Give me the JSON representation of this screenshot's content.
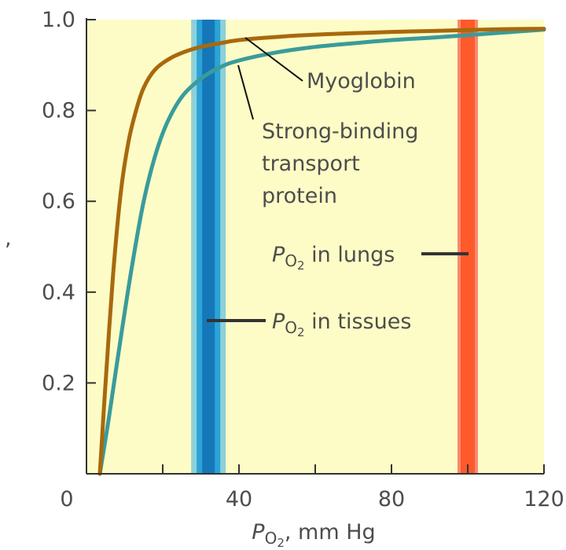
{
  "chart_data": {
    "type": "line",
    "title": "",
    "xlabel": {
      "symbol": "P",
      "subscript": "O",
      "subsubscript": "2",
      "unit": ", mm Hg"
    },
    "ylabel": ",",
    "xlim": [
      0,
      120
    ],
    "ylim": [
      0,
      1.0
    ],
    "x_ticks": [
      0,
      40,
      80,
      120
    ],
    "x_minor_ticks": [
      20,
      60,
      100
    ],
    "y_ticks": [
      0.2,
      0.4,
      0.6,
      0.8,
      1.0
    ],
    "y_tick_labels": [
      "0.2",
      "0.4",
      "0.6",
      "0.8",
      "1.0"
    ],
    "x_tick_labels": [
      "0",
      "40",
      "80",
      "120"
    ],
    "grid": false,
    "colors": {
      "background": "#fdfcc6",
      "myoglobin": "#a8690d",
      "transport": "#3a9b9b",
      "tissue_band_outer": "#8ed0d8",
      "tissue_band_mid": "#2aa3d6",
      "tissue_band_core": "#1577b8",
      "lung_band_outer": "#f98a73",
      "lung_band_core": "#ff5a2a",
      "axis": "#333333",
      "text": "#4d4d4d"
    },
    "series": [
      {
        "key": "myoglobin",
        "x": [
          3.5,
          5,
          7,
          9,
          11,
          13,
          15,
          18,
          22,
          26,
          30,
          35,
          40,
          50,
          60,
          70,
          80,
          90,
          100,
          110,
          120
        ],
        "y": [
          0.0,
          0.2,
          0.44,
          0.62,
          0.73,
          0.8,
          0.85,
          0.89,
          0.915,
          0.93,
          0.94,
          0.948,
          0.955,
          0.962,
          0.967,
          0.97,
          0.973,
          0.975,
          0.977,
          0.979,
          0.98
        ]
      },
      {
        "key": "transport",
        "x": [
          3.5,
          6,
          9,
          12,
          15,
          18,
          21,
          25,
          30,
          35,
          40,
          50,
          60,
          70,
          80,
          90,
          100,
          110,
          120
        ],
        "y": [
          0.0,
          0.13,
          0.3,
          0.46,
          0.6,
          0.7,
          0.77,
          0.83,
          0.87,
          0.895,
          0.91,
          0.928,
          0.94,
          0.948,
          0.955,
          0.96,
          0.966,
          0.972,
          0.978
        ]
      }
    ],
    "bands": [
      {
        "key": "tissues",
        "center": 32,
        "label_prefix": "P",
        "label_sub": "O",
        "label_subsub": "2",
        "label_rest": " in tissues"
      },
      {
        "key": "lungs",
        "center": 100,
        "label_prefix": "P",
        "label_sub": "O",
        "label_subsub": "2",
        "label_rest": " in lungs"
      }
    ],
    "annotations": {
      "myoglobin_label": "Myoglobin",
      "transport_label_lines": [
        "Strong-binding",
        "transport",
        "protein"
      ]
    }
  }
}
